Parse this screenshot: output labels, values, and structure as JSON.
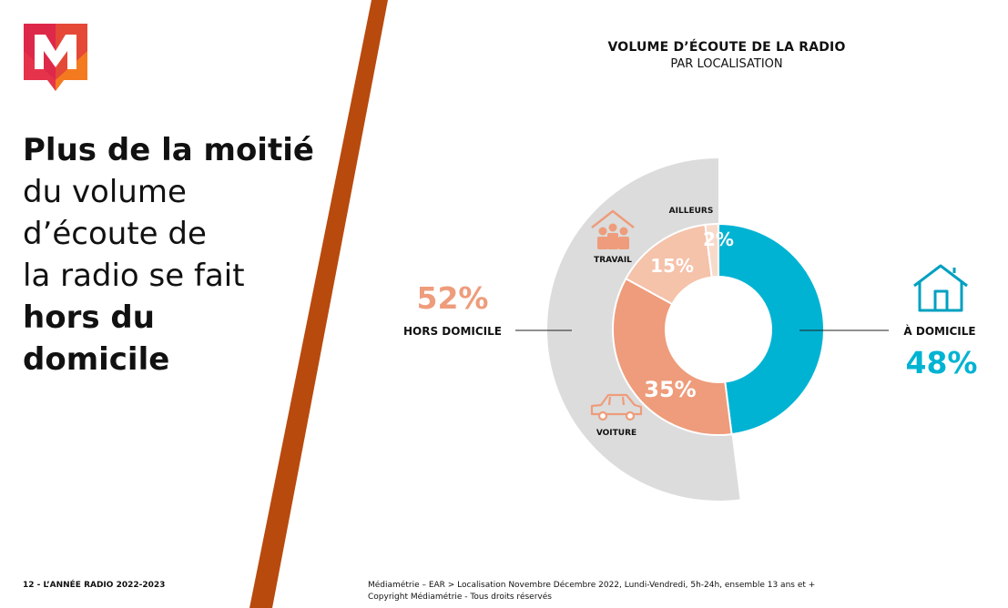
{
  "headline": {
    "line1": "Plus de la moitié",
    "line2": "du volume",
    "line3": "d’écoute de",
    "line4": "la radio se fait",
    "line5": "hors du",
    "line6": "domicile"
  },
  "colors": {
    "stripe": "#b84a0e",
    "teal": "#00b3d3",
    "salmon": "#ee9c7b",
    "light_salmon": "#f5c2aa",
    "pale": "#f8dacb",
    "grey": "#dcdcdc"
  },
  "chart_data": {
    "type": "pie",
    "title": "VOLUME D’ÉCOUTE DE LA RADIO",
    "subtitle": "PAR LOCALISATION",
    "outer_groups": [
      {
        "label": "HORS DOMICILE",
        "value": 52,
        "value_label": "52%"
      },
      {
        "label": "À DOMICILE",
        "value": 48,
        "value_label": "48%"
      }
    ],
    "inner_slices": [
      {
        "label": "À DOMICILE",
        "value": 48,
        "value_label": ""
      },
      {
        "label": "VOITURE",
        "value": 35,
        "value_label": "35%"
      },
      {
        "label": "TRAVAIL",
        "value": 15,
        "value_label": "15%"
      },
      {
        "label": "AILLEURS",
        "value": 2,
        "value_label": "2%"
      }
    ],
    "icons": [
      "house-icon",
      "car-icon",
      "office-workers-icon"
    ]
  },
  "footer": {
    "page": "12 - L’ANNÉE RADIO 2022-2023",
    "source_line1": "Médiamétrie – EAR > Localisation Novembre Décembre 2022, Lundi-Vendredi, 5h-24h, ensemble 13 ans et +",
    "source_line2": "Copyright Médiamétrie - Tous droits réservés"
  }
}
